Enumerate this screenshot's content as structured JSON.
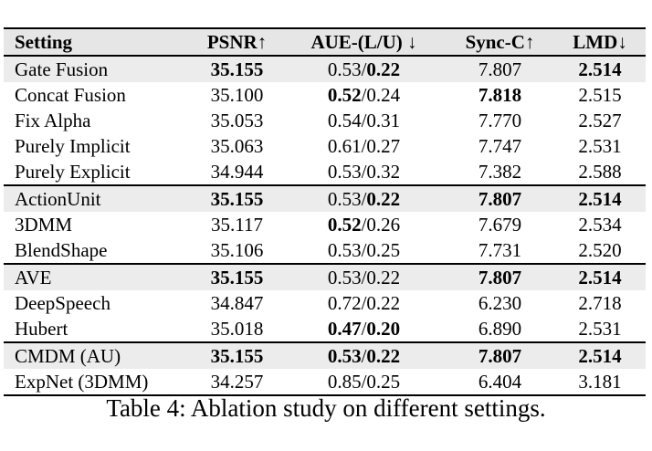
{
  "table": {
    "headers": [
      "Setting",
      "PSNR↑",
      "AUE-(L/U) ↓",
      "Sync-C↑",
      "LMD↓"
    ],
    "rows": [
      {
        "setting": "Gate Fusion",
        "psnr": "35.155",
        "aue_l": "0.53",
        "aue_u": "0.22",
        "sync": "7.807",
        "lmd": "2.514",
        "bold": {
          "psnr": true,
          "aue_l": false,
          "aue_u": true,
          "sync": false,
          "lmd": true
        }
      },
      {
        "setting": "Concat Fusion",
        "psnr": "35.100",
        "aue_l": "0.52",
        "aue_u": "0.24",
        "sync": "7.818",
        "lmd": "2.515",
        "bold": {
          "psnr": false,
          "aue_l": true,
          "aue_u": false,
          "sync": true,
          "lmd": false
        }
      },
      {
        "setting": "Fix Alpha",
        "psnr": "35.053",
        "aue_l": "0.54",
        "aue_u": "0.31",
        "sync": "7.770",
        "lmd": "2.527",
        "bold": {
          "psnr": false,
          "aue_l": false,
          "aue_u": false,
          "sync": false,
          "lmd": false
        }
      },
      {
        "setting": "Purely Implicit",
        "psnr": "35.063",
        "aue_l": "0.61",
        "aue_u": "0.27",
        "sync": "7.747",
        "lmd": "2.531",
        "bold": {
          "psnr": false,
          "aue_l": false,
          "aue_u": false,
          "sync": false,
          "lmd": false
        }
      },
      {
        "setting": "Purely Explicit",
        "psnr": "34.944",
        "aue_l": "0.53",
        "aue_u": "0.32",
        "sync": "7.382",
        "lmd": "2.588",
        "bold": {
          "psnr": false,
          "aue_l": false,
          "aue_u": false,
          "sync": false,
          "lmd": false
        }
      },
      {
        "setting": "ActionUnit",
        "psnr": "35.155",
        "aue_l": "0.53",
        "aue_u": "0.22",
        "sync": "7.807",
        "lmd": "2.514",
        "bold": {
          "psnr": true,
          "aue_l": false,
          "aue_u": true,
          "sync": true,
          "lmd": true
        }
      },
      {
        "setting": "3DMM",
        "psnr": "35.117",
        "aue_l": "0.52",
        "aue_u": "0.26",
        "sync": "7.679",
        "lmd": "2.534",
        "bold": {
          "psnr": false,
          "aue_l": true,
          "aue_u": false,
          "sync": false,
          "lmd": false
        }
      },
      {
        "setting": "BlendShape",
        "psnr": "35.106",
        "aue_l": "0.53",
        "aue_u": "0.25",
        "sync": "7.731",
        "lmd": "2.520",
        "bold": {
          "psnr": false,
          "aue_l": false,
          "aue_u": false,
          "sync": false,
          "lmd": false
        }
      },
      {
        "setting": "AVE",
        "psnr": "35.155",
        "aue_l": "0.53",
        "aue_u": "0.22",
        "sync": "7.807",
        "lmd": "2.514",
        "bold": {
          "psnr": true,
          "aue_l": false,
          "aue_u": false,
          "sync": true,
          "lmd": true
        }
      },
      {
        "setting": "DeepSpeech",
        "psnr": "34.847",
        "aue_l": "0.72",
        "aue_u": "0.22",
        "sync": "6.230",
        "lmd": "2.718",
        "bold": {
          "psnr": false,
          "aue_l": false,
          "aue_u": false,
          "sync": false,
          "lmd": false
        }
      },
      {
        "setting": "Hubert",
        "psnr": "35.018",
        "aue_l": "0.47",
        "aue_u": "0.20",
        "sync": "6.890",
        "lmd": "2.531",
        "bold": {
          "psnr": false,
          "aue_l": true,
          "aue_u": true,
          "sync": false,
          "lmd": false
        }
      },
      {
        "setting": "CMDM (AU)",
        "psnr": "35.155",
        "aue_l": "0.53",
        "aue_u": "0.22",
        "sync": "7.807",
        "lmd": "2.514",
        "bold": {
          "psnr": true,
          "aue_l": true,
          "aue_u": true,
          "sync": true,
          "lmd": true
        }
      },
      {
        "setting": "ExpNet (3DMM)",
        "psnr": "34.257",
        "aue_l": "0.85",
        "aue_u": "0.25",
        "sync": "6.404",
        "lmd": "3.181",
        "bold": {
          "psnr": false,
          "aue_l": false,
          "aue_u": false,
          "sync": false,
          "lmd": false
        }
      }
    ],
    "shaded_rows": [
      0,
      5,
      8,
      11
    ],
    "group_starts": [
      5,
      8,
      11
    ]
  },
  "caption": "Table 4: Ablation study on different settings."
}
